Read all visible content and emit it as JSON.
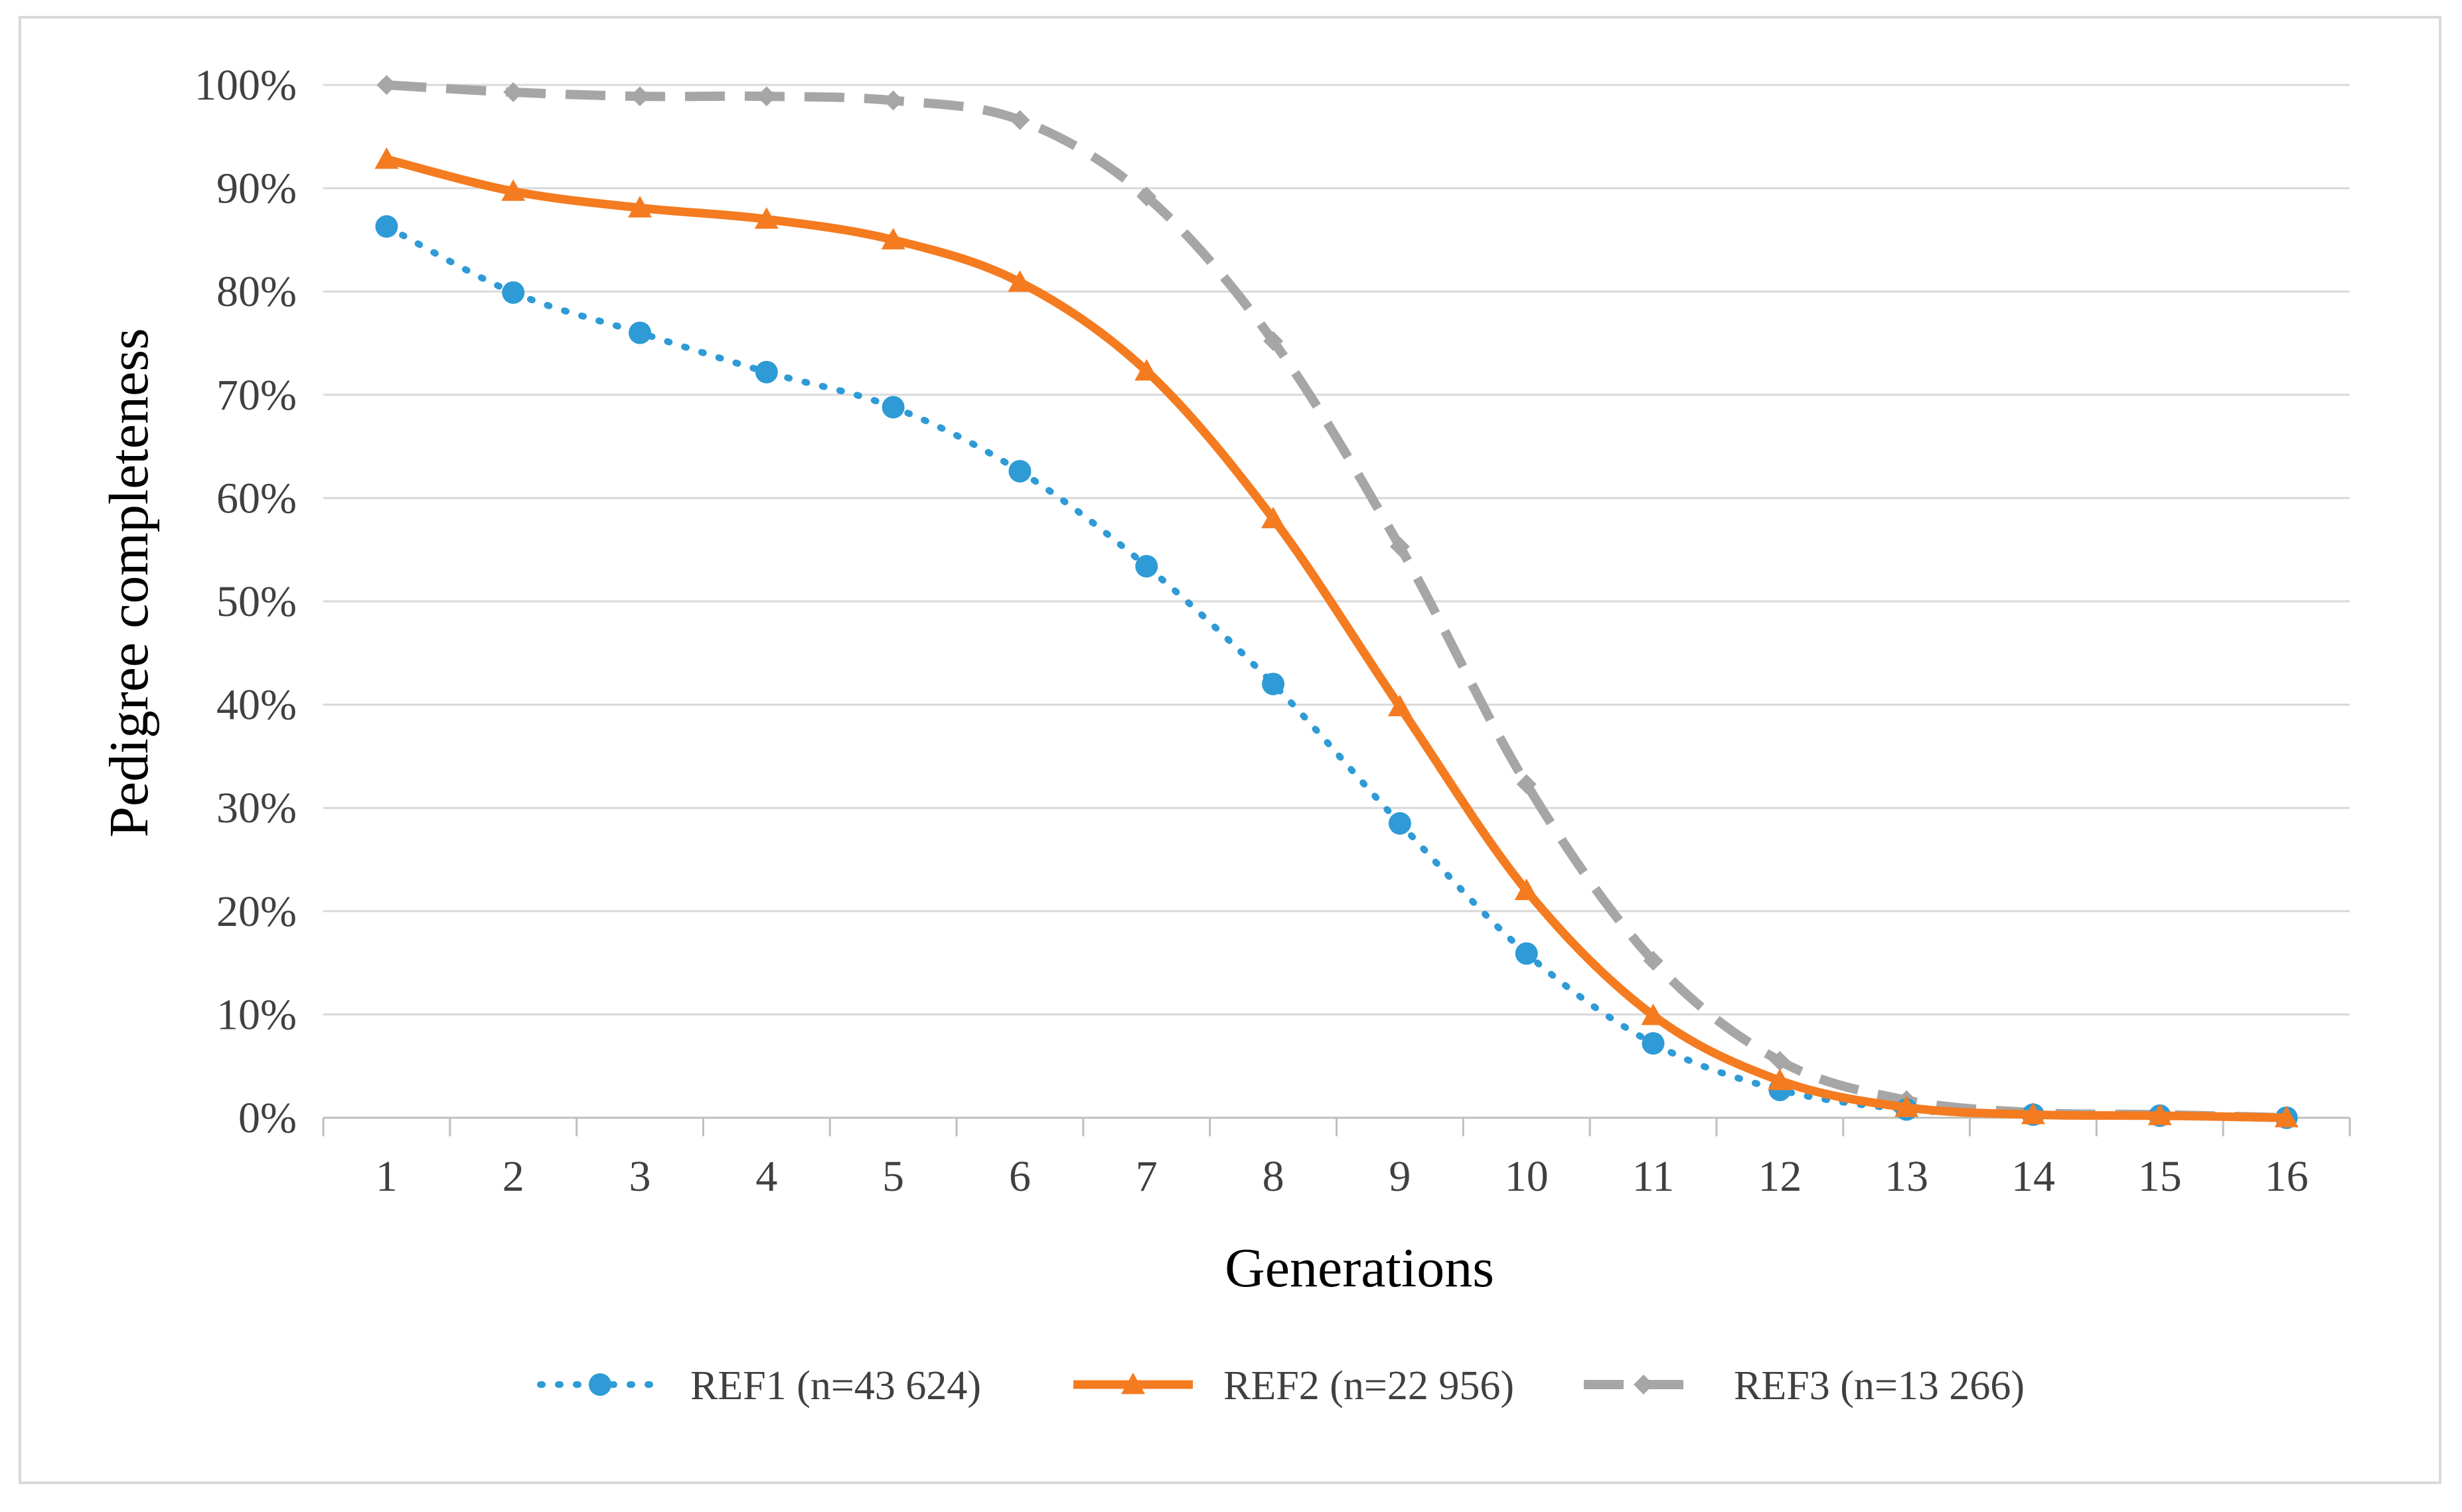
{
  "chart_data": {
    "type": "line",
    "title": "",
    "xlabel": "Generations",
    "ylabel": "Pedigree  completeness",
    "categories": [
      "1",
      "2",
      "3",
      "4",
      "5",
      "6",
      "7",
      "8",
      "9",
      "10",
      "11",
      "12",
      "13",
      "14",
      "15",
      "16"
    ],
    "ylim": [
      0,
      100
    ],
    "yticks": [
      "0%",
      "10%",
      "20%",
      "30%",
      "40%",
      "50%",
      "60%",
      "70%",
      "80%",
      "90%",
      "100%"
    ],
    "grid": true,
    "legend_position": "bottom",
    "series": [
      {
        "name": "REF1  (n=43 624)",
        "color": "#2e9bd6",
        "style": "dotted",
        "marker": "circle",
        "values": [
          86.3,
          79.9,
          76.0,
          72.2,
          68.8,
          62.6,
          53.4,
          42.0,
          28.5,
          15.9,
          7.2,
          2.7,
          0.8,
          0.3,
          0.2,
          0.0
        ]
      },
      {
        "name": "REF2 (n=22 956)",
        "color": "#f47b20",
        "style": "solid",
        "marker": "triangle",
        "values": [
          92.8,
          89.7,
          88.1,
          87.0,
          85.0,
          80.9,
          72.3,
          58.0,
          39.8,
          22.0,
          9.9,
          3.6,
          1.0,
          0.3,
          0.2,
          0.0
        ]
      },
      {
        "name": "REF3 (n=13 266)",
        "color": "#a6a6a6",
        "style": "dashed",
        "marker": "diamond",
        "values": [
          100.0,
          99.3,
          98.9,
          98.9,
          98.5,
          96.6,
          89.2,
          75.2,
          55.3,
          32.3,
          15.2,
          5.5,
          1.7,
          0.5,
          0.3,
          0.0
        ]
      }
    ]
  }
}
